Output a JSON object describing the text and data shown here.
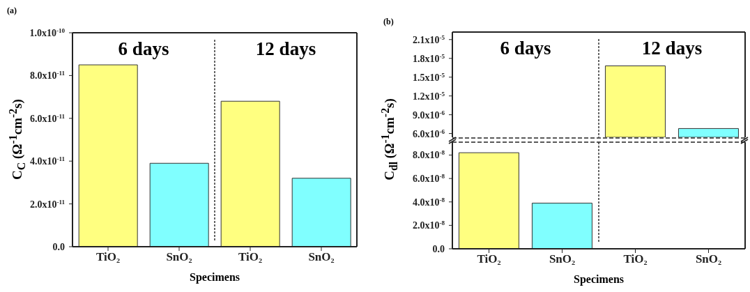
{
  "chart_data": [
    {
      "type": "bar",
      "title": "(a)",
      "xlabel": "Specimens",
      "ylabel": "C$_{C}$ (Ω$^{-1}$cm$^{-2}$s)",
      "categories": [
        "TiO₂",
        "SnO₂",
        "TiO₂",
        "SnO₂"
      ],
      "values": [
        8.5e-11,
        3.9e-11,
        6.8e-11,
        3.2e-11
      ],
      "ref_lines": [
        {
          "axis": "x",
          "line_style": "dashed",
          "color": "#333333"
        }
      ],
      "colors": [
        "#ffff80",
        "#80ffff",
        "#ffff80",
        "#80ffff"
      ],
      "ylim": [
        0,
        1e-10
      ],
      "yticks": [
        {
          "value": 0,
          "label": "0.0"
        },
        {
          "value": 2e-11,
          "label": "2.0x10$^{-11}$"
        },
        {
          "value": 4e-11,
          "label": "4.0x10$^{-11}$"
        },
        {
          "value": 6e-11,
          "label": "6.0x10$^{-11}$"
        },
        {
          "value": 8e-11,
          "label": "8.0x10$^{-11}$"
        },
        {
          "value": 1e-10,
          "label": "1.0x10$^{-10}$"
        }
      ],
      "annotations": [
        "6 days",
        "12 days"
      ]
    },
    {
      "type": "bar",
      "title": "(b)",
      "categories": [
        null,
        null,
        null,
        null
      ],
      "values": [
        null,
        null,
        1.68e-05,
        6.8e-06
      ],
      "ref_lines": [
        {
          "axis": "x",
          "line_style": "dashed",
          "color": "#333333"
        }
      ],
      "colors": [
        "#ffff80",
        "#80ffff",
        "#ffff80",
        "#80ffff"
      ],
      "ylim": [
        5.4e-06,
        2.22e-05
      ],
      "yticks": [
        {
          "value": 6e-06,
          "label": "6.0x10$^{-6}$"
        },
        {
          "value": 9e-06,
          "label": "9.0x10$^{-6}$"
        },
        {
          "value": 1.2e-05,
          "label": "1.2x10$^{-5}$"
        },
        {
          "value": 1.5e-05,
          "label": "1.5x10$^{-5}$"
        },
        {
          "value": 1.8e-05,
          "label": "1.8x10$^{-5}$"
        },
        {
          "value": 2.1e-05,
          "label": "2.1x10$^{-5}$"
        }
      ],
      "tick_labels": "y",
      "annotations": [
        "6 days",
        "12 days"
      ]
    },
    {
      "type": "bar",
      "xlabel": "Specimens",
      "ylabel": "C$_{dl}$ (Ω$^{-1}$cm$^{-2}$s)",
      "categories": [
        "TiO₂",
        "SnO₂",
        "TiO₂",
        "SnO₂"
      ],
      "values": [
        8.2e-08,
        3.9e-08,
        null,
        null
      ],
      "ref_lines": [
        {
          "axis": "x",
          "line_style": "dashed",
          "color": "#333333"
        }
      ],
      "colors": [
        "#ffff80",
        "#80ffff",
        "#ffff80",
        "#80ffff"
      ],
      "ylim": [
        0,
        9.1e-08
      ],
      "yticks": [
        {
          "value": 0,
          "label": "0.0"
        },
        {
          "value": 2e-08,
          "label": "2.0x10$^{-8}$"
        },
        {
          "value": 4e-08,
          "label": "4.0x10$^{-8}$"
        },
        {
          "value": 6e-08,
          "label": "6.0x10$^{-8}$"
        },
        {
          "value": 8e-08,
          "label": "8.0x10$^{-8}$"
        }
      ]
    }
  ]
}
